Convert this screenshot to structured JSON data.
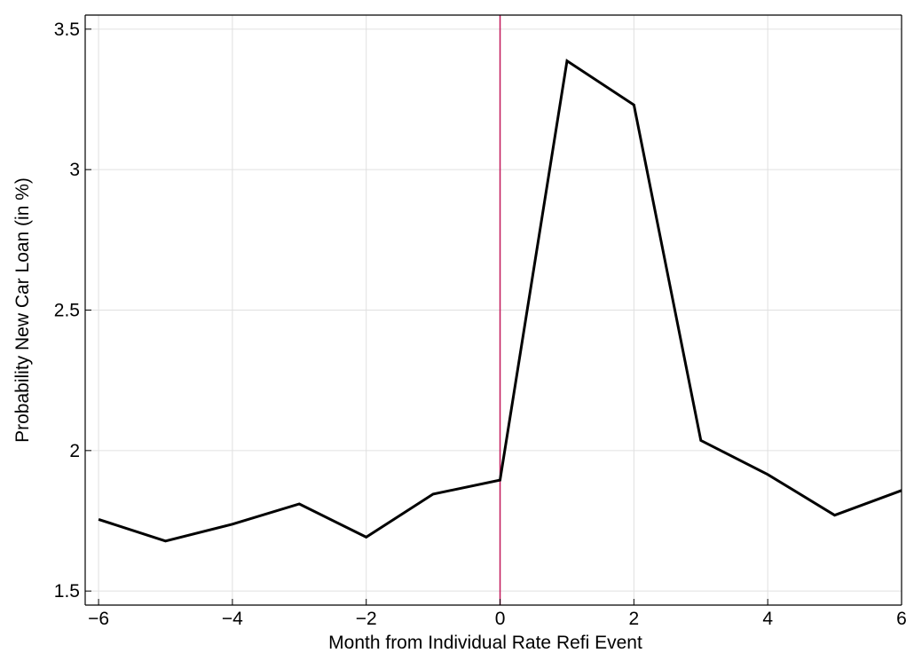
{
  "chart_data": {
    "type": "line",
    "title": "",
    "xlabel": "Month from Individual Rate Refi Event",
    "ylabel": "Probability New Car Loan (in %)",
    "xlim": [
      -6.2,
      6
    ],
    "ylim": [
      1.45,
      3.55
    ],
    "x_ticks": [
      -6,
      -4,
      -2,
      0,
      2,
      4,
      6
    ],
    "x_tick_labels": [
      "−6",
      "−4",
      "−2",
      "0",
      "2",
      "4",
      "6"
    ],
    "y_ticks": [
      1.5,
      2,
      2.5,
      3,
      3.5
    ],
    "y_tick_labels": [
      "1.5",
      "2",
      "2.5",
      "3",
      "3.5"
    ],
    "grid": true,
    "vertical_reference_line": {
      "x": 0,
      "color": "#c2185b"
    },
    "series": [
      {
        "line_color": "#000000",
        "x": [
          -6,
          -5,
          -4,
          -3,
          -2,
          -1,
          0,
          1,
          2,
          3,
          4,
          5,
          6
        ],
        "y": [
          1.755,
          1.678,
          1.738,
          1.81,
          1.692,
          1.845,
          1.895,
          3.387,
          3.23,
          2.036,
          1.915,
          1.77,
          1.858
        ]
      }
    ]
  }
}
